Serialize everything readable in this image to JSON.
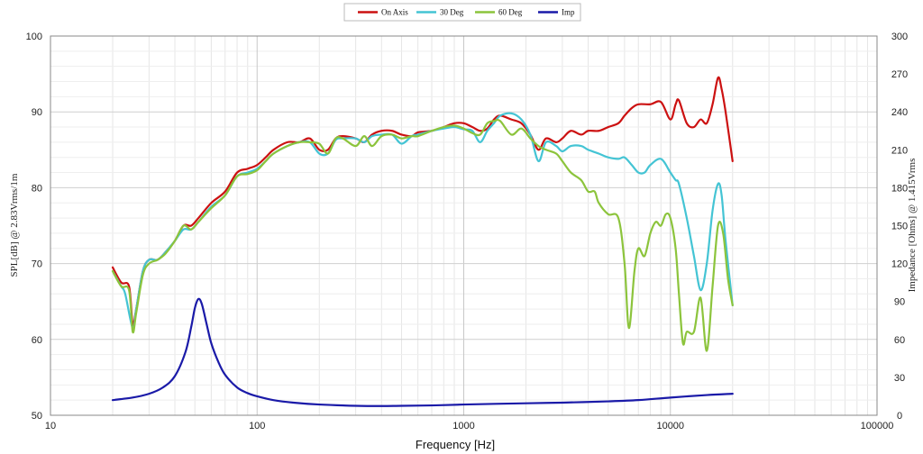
{
  "chart_data": {
    "type": "line",
    "xlabel": "Frequency [Hz]",
    "ylabel_left": "SPL[dB] @ 2.83Vrms/1m",
    "ylabel_right": "Impedance [Ohms] @ 1.415Vrms",
    "x_scale": "log",
    "xlim": [
      10,
      100000
    ],
    "ylim_left": [
      50,
      100
    ],
    "ylim_right": [
      0,
      300
    ],
    "x_ticks": [
      10,
      100,
      1000,
      10000,
      100000
    ],
    "x_tick_labels": [
      "10",
      "100",
      "1000",
      "10000",
      "100000"
    ],
    "y_left_ticks": [
      "50",
      "60",
      "70",
      "80",
      "90",
      "100"
    ],
    "y_right_ticks": [
      "0",
      "30",
      "60",
      "90",
      "120",
      "150",
      "180",
      "210",
      "240",
      "270",
      "300"
    ],
    "grid": true,
    "legend_position": "top-center",
    "series": [
      {
        "name": "On Axis",
        "color": "#cc1111",
        "axis": "left",
        "points": [
          [
            20,
            69.5
          ],
          [
            22,
            67.5
          ],
          [
            24,
            67
          ],
          [
            25,
            62
          ],
          [
            26,
            64
          ],
          [
            28,
            69
          ],
          [
            30,
            70.5
          ],
          [
            33,
            70.5
          ],
          [
            36,
            71.5
          ],
          [
            40,
            73
          ],
          [
            44,
            75
          ],
          [
            48,
            75
          ],
          [
            52,
            76
          ],
          [
            60,
            78
          ],
          [
            70,
            79.5
          ],
          [
            80,
            82
          ],
          [
            90,
            82.5
          ],
          [
            100,
            83
          ],
          [
            110,
            84
          ],
          [
            120,
            85
          ],
          [
            140,
            86
          ],
          [
            160,
            86
          ],
          [
            180,
            86.5
          ],
          [
            200,
            85
          ],
          [
            220,
            85
          ],
          [
            240,
            86.5
          ],
          [
            260,
            86.8
          ],
          [
            300,
            86.5
          ],
          [
            330,
            86
          ],
          [
            360,
            87
          ],
          [
            400,
            87.5
          ],
          [
            450,
            87.5
          ],
          [
            500,
            87
          ],
          [
            560,
            86.8
          ],
          [
            600,
            87.3
          ],
          [
            700,
            87.5
          ],
          [
            800,
            88
          ],
          [
            900,
            88.5
          ],
          [
            1000,
            88.5
          ],
          [
            1100,
            88
          ],
          [
            1200,
            87.5
          ],
          [
            1300,
            87.8
          ],
          [
            1400,
            89
          ],
          [
            1500,
            89.5
          ],
          [
            1700,
            89
          ],
          [
            1900,
            88.5
          ],
          [
            2100,
            87
          ],
          [
            2300,
            85
          ],
          [
            2500,
            86.5
          ],
          [
            2800,
            86
          ],
          [
            3000,
            86.5
          ],
          [
            3300,
            87.5
          ],
          [
            3700,
            87
          ],
          [
            4000,
            87.5
          ],
          [
            4500,
            87.5
          ],
          [
            5000,
            88
          ],
          [
            5600,
            88.5
          ],
          [
            6000,
            89.5
          ],
          [
            6500,
            90.5
          ],
          [
            7000,
            91
          ],
          [
            8000,
            91
          ],
          [
            9000,
            91.3
          ],
          [
            10000,
            89
          ],
          [
            10600,
            91
          ],
          [
            11000,
            91.5
          ],
          [
            12000,
            88.5
          ],
          [
            13000,
            88
          ],
          [
            14000,
            89
          ],
          [
            15000,
            88.5
          ],
          [
            16000,
            91
          ],
          [
            17000,
            94.5
          ],
          [
            17700,
            93
          ],
          [
            18500,
            90
          ],
          [
            20000,
            83.5
          ]
        ]
      },
      {
        "name": "30 Deg",
        "color": "#44c4d4",
        "axis": "left",
        "points": [
          [
            20,
            69
          ],
          [
            22,
            67
          ],
          [
            23,
            66
          ],
          [
            25,
            61.5
          ],
          [
            26,
            64
          ],
          [
            28,
            69
          ],
          [
            30,
            70.5
          ],
          [
            33,
            70.5
          ],
          [
            36,
            71.5
          ],
          [
            40,
            73
          ],
          [
            44,
            74.5
          ],
          [
            48,
            74.5
          ],
          [
            52,
            75.5
          ],
          [
            60,
            77.5
          ],
          [
            70,
            79
          ],
          [
            80,
            81.5
          ],
          [
            90,
            82
          ],
          [
            100,
            82.5
          ],
          [
            110,
            83.5
          ],
          [
            120,
            84.5
          ],
          [
            140,
            85.5
          ],
          [
            160,
            86
          ],
          [
            180,
            86
          ],
          [
            200,
            84.5
          ],
          [
            220,
            84.5
          ],
          [
            240,
            86.3
          ],
          [
            260,
            86.5
          ],
          [
            300,
            86.5
          ],
          [
            330,
            86
          ],
          [
            360,
            86.8
          ],
          [
            400,
            87
          ],
          [
            450,
            87
          ],
          [
            500,
            85.8
          ],
          [
            560,
            86.8
          ],
          [
            600,
            87
          ],
          [
            700,
            87.5
          ],
          [
            800,
            87.8
          ],
          [
            900,
            88
          ],
          [
            1000,
            87.7
          ],
          [
            1100,
            87.5
          ],
          [
            1200,
            86
          ],
          [
            1300,
            87.5
          ],
          [
            1400,
            88.5
          ],
          [
            1500,
            89.5
          ],
          [
            1700,
            89.8
          ],
          [
            1900,
            89
          ],
          [
            2100,
            87
          ],
          [
            2300,
            83.5
          ],
          [
            2500,
            86
          ],
          [
            2800,
            85.5
          ],
          [
            3000,
            84.8
          ],
          [
            3300,
            85.5
          ],
          [
            3700,
            85.5
          ],
          [
            4000,
            85
          ],
          [
            4500,
            84.5
          ],
          [
            5000,
            84
          ],
          [
            5600,
            83.8
          ],
          [
            6000,
            84
          ],
          [
            6500,
            83
          ],
          [
            7000,
            82
          ],
          [
            7500,
            82
          ],
          [
            8000,
            83
          ],
          [
            9000,
            83.8
          ],
          [
            10000,
            82
          ],
          [
            10600,
            81
          ],
          [
            11000,
            80.5
          ],
          [
            12000,
            76
          ],
          [
            13000,
            71
          ],
          [
            14000,
            66.5
          ],
          [
            15000,
            70
          ],
          [
            16000,
            77
          ],
          [
            17000,
            80.5
          ],
          [
            17700,
            79
          ],
          [
            18500,
            73
          ],
          [
            20000,
            64.5
          ]
        ]
      },
      {
        "name": "60 Deg",
        "color": "#8cc43c",
        "axis": "left",
        "points": [
          [
            20,
            69
          ],
          [
            22,
            67
          ],
          [
            24,
            66.5
          ],
          [
            25,
            61
          ],
          [
            26,
            63.5
          ],
          [
            28,
            68.5
          ],
          [
            30,
            70
          ],
          [
            33,
            70.5
          ],
          [
            36,
            71.3
          ],
          [
            40,
            73
          ],
          [
            44,
            75
          ],
          [
            48,
            74.5
          ],
          [
            52,
            75.5
          ],
          [
            60,
            77.3
          ],
          [
            70,
            79
          ],
          [
            80,
            81.5
          ],
          [
            90,
            81.8
          ],
          [
            100,
            82.3
          ],
          [
            110,
            83.5
          ],
          [
            120,
            84.5
          ],
          [
            140,
            85.5
          ],
          [
            160,
            86
          ],
          [
            180,
            86
          ],
          [
            200,
            85.8
          ],
          [
            220,
            84.5
          ],
          [
            240,
            86.5
          ],
          [
            260,
            86.5
          ],
          [
            300,
            85.5
          ],
          [
            330,
            86.8
          ],
          [
            360,
            85.5
          ],
          [
            400,
            86.8
          ],
          [
            450,
            87
          ],
          [
            500,
            86.5
          ],
          [
            560,
            86.8
          ],
          [
            600,
            86.8
          ],
          [
            700,
            87.5
          ],
          [
            800,
            88
          ],
          [
            900,
            88.2
          ],
          [
            1000,
            87.8
          ],
          [
            1100,
            87.2
          ],
          [
            1200,
            87
          ],
          [
            1300,
            88.5
          ],
          [
            1400,
            88.8
          ],
          [
            1500,
            88.8
          ],
          [
            1700,
            87
          ],
          [
            1900,
            87.8
          ],
          [
            2100,
            86.5
          ],
          [
            2300,
            85.5
          ],
          [
            2500,
            85
          ],
          [
            2800,
            84.5
          ],
          [
            3000,
            83.5
          ],
          [
            3300,
            82
          ],
          [
            3700,
            81
          ],
          [
            4000,
            79.5
          ],
          [
            4300,
            79.5
          ],
          [
            4500,
            78
          ],
          [
            5000,
            76.5
          ],
          [
            5600,
            76
          ],
          [
            6000,
            70
          ],
          [
            6300,
            61.5
          ],
          [
            6700,
            69
          ],
          [
            7000,
            72
          ],
          [
            7500,
            71
          ],
          [
            8000,
            74
          ],
          [
            8500,
            75.5
          ],
          [
            9000,
            75
          ],
          [
            9500,
            76.5
          ],
          [
            10000,
            76
          ],
          [
            10600,
            72
          ],
          [
            11000,
            66
          ],
          [
            11500,
            59.5
          ],
          [
            12000,
            61
          ],
          [
            13000,
            61
          ],
          [
            14000,
            65.5
          ],
          [
            15000,
            58.5
          ],
          [
            16000,
            67
          ],
          [
            17000,
            75
          ],
          [
            18000,
            74
          ],
          [
            19000,
            68
          ],
          [
            20000,
            64.5
          ]
        ]
      },
      {
        "name": "Imp",
        "color": "#1a1aa8",
        "axis": "right",
        "points": [
          [
            20,
            12
          ],
          [
            25,
            14
          ],
          [
            30,
            17
          ],
          [
            35,
            22
          ],
          [
            40,
            31
          ],
          [
            45,
            50
          ],
          [
            48,
            70
          ],
          [
            50,
            85
          ],
          [
            52,
            92
          ],
          [
            54,
            88
          ],
          [
            57,
            72
          ],
          [
            60,
            57
          ],
          [
            65,
            42
          ],
          [
            70,
            32
          ],
          [
            80,
            22
          ],
          [
            90,
            17.5
          ],
          [
            100,
            15
          ],
          [
            120,
            12
          ],
          [
            150,
            10
          ],
          [
            200,
            8.5
          ],
          [
            300,
            7.5
          ],
          [
            400,
            7.3
          ],
          [
            500,
            7.5
          ],
          [
            700,
            7.8
          ],
          [
            1000,
            8.5
          ],
          [
            2000,
            9.5
          ],
          [
            3000,
            10
          ],
          [
            5000,
            11
          ],
          [
            7000,
            12
          ],
          [
            10000,
            14
          ],
          [
            15000,
            16
          ],
          [
            20000,
            17
          ]
        ]
      }
    ]
  }
}
